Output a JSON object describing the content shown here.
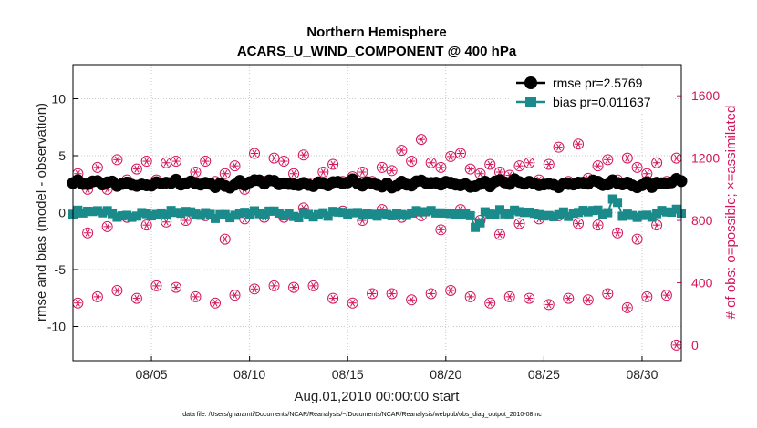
{
  "chart_data": {
    "type": "scatter",
    "title": "Northern Hemisphere",
    "subtitle": "ACARS_U_WIND_COMPONENT @ 400 hPa",
    "xlabel": "Aug.01,2010 00:00:00 start",
    "ylabel": "rmse and bias (model - observation)",
    "y2label": "# of obs: o=possible; ×=assimilated",
    "footnote": "data file: /Users/gharamti/Documents/NCAR/Reanalysis/~/Documents/NCAR/Reanalysis/webpub/obs_diag_output_2010-08.nc",
    "xlim": [
      1.0,
      32.0
    ],
    "ylim": [
      -13,
      13
    ],
    "y2lim": [
      -100,
      1800
    ],
    "xticks": [
      5,
      10,
      15,
      20,
      25,
      30
    ],
    "xtick_labels": [
      "08/05",
      "08/10",
      "08/15",
      "08/20",
      "08/25",
      "08/30"
    ],
    "yticks": [
      10,
      5,
      0,
      -5,
      -10
    ],
    "ytick_labels": [
      "10",
      "5",
      "0",
      "-5",
      "-10"
    ],
    "y2ticks": [
      1600,
      1200,
      800,
      400,
      0
    ],
    "y2tick_labels": [
      "1600",
      "1200",
      "800",
      "400",
      "0"
    ],
    "legend": {
      "position": "top-right",
      "entries": [
        {
          "label": "rmse pr=2.5769",
          "color": "#000000",
          "marker": "circle"
        },
        {
          "label": "bias pr=0.011637",
          "color": "#1a8a8a",
          "marker": "square"
        }
      ]
    },
    "colors": {
      "rmse": "#000000",
      "bias": "#1a8a8a",
      "obs": "#d4145a"
    },
    "series": [
      {
        "name": "rmse",
        "axis": "left",
        "style": "line-marker",
        "base": 2.55,
        "amplitude": 0.35
      },
      {
        "name": "bias",
        "axis": "left",
        "style": "line-marker",
        "base": -0.1,
        "amplitude": 0.35
      },
      {
        "name": "possible / assimilated (high)",
        "axis": "right",
        "style": "marker",
        "x": [
          1.25,
          1.75,
          2.25,
          2.75,
          3.25,
          3.75,
          4.25,
          4.75,
          5.25,
          5.75,
          6.25,
          6.75,
          7.25,
          7.75,
          8.25,
          8.75,
          9.25,
          9.75,
          10.25,
          10.75,
          11.25,
          11.75,
          12.25,
          12.75,
          13.25,
          13.75,
          14.25,
          14.75,
          15.25,
          15.75,
          16.25,
          16.75,
          17.25,
          17.75,
          18.25,
          18.75,
          19.25,
          19.75,
          20.25,
          20.75,
          21.25,
          21.75,
          22.25,
          22.75,
          23.25,
          23.75,
          24.25,
          24.75,
          25.25,
          25.75,
          26.25,
          26.75,
          27.25,
          27.75,
          28.25,
          28.75,
          29.25,
          29.75,
          30.25,
          30.75,
          31.25,
          31.75
        ],
        "y": [
          1100,
          1000,
          1140,
          1000,
          1190,
          1060,
          1130,
          1180,
          1060,
          1170,
          1180,
          1040,
          1110,
          1180,
          1050,
          1100,
          1150,
          1000,
          1230,
          1050,
          1200,
          1180,
          1100,
          1220,
          1040,
          1110,
          1160,
          1050,
          1080,
          1110,
          1050,
          1140,
          1120,
          1250,
          1180,
          1320,
          1170,
          1140,
          1210,
          1230,
          1130,
          1100,
          1160,
          1110,
          1090,
          1150,
          1170,
          1060,
          1160,
          1270,
          1050,
          1290,
          1070,
          1150,
          1190,
          1060,
          1200,
          1140,
          1100,
          1170,
          1050,
          1200
        ]
      },
      {
        "name": "possible / assimilated (low)",
        "axis": "right",
        "style": "marker",
        "x": [
          1.25,
          1.75,
          2.25,
          2.75,
          3.25,
          3.75,
          4.25,
          4.75,
          5.25,
          5.75,
          6.25,
          6.75,
          7.25,
          7.75,
          8.25,
          8.75,
          9.25,
          9.75,
          10.25,
          10.75,
          11.25,
          11.75,
          12.25,
          12.75,
          13.25,
          13.75,
          14.25,
          14.75,
          15.25,
          15.75,
          16.25,
          16.75,
          17.25,
          17.75,
          18.25,
          18.75,
          19.25,
          19.75,
          20.25,
          20.75,
          21.25,
          21.75,
          22.25,
          22.75,
          23.25,
          23.75,
          24.25,
          24.75,
          25.25,
          25.75,
          26.25,
          26.75,
          27.25,
          27.75,
          28.25,
          28.75,
          29.25,
          29.75,
          30.25,
          30.75,
          31.25,
          31.75
        ],
        "y": [
          270,
          720,
          310,
          760,
          350,
          820,
          300,
          770,
          380,
          790,
          370,
          800,
          310,
          830,
          270,
          680,
          320,
          810,
          360,
          820,
          380,
          820,
          370,
          880,
          380,
          840,
          300,
          860,
          270,
          800,
          330,
          870,
          330,
          820,
          290,
          830,
          330,
          740,
          350,
          870,
          310,
          800,
          270,
          710,
          310,
          780,
          300,
          810,
          260,
          830,
          300,
          780,
          290,
          770,
          330,
          720,
          240,
          680,
          310,
          770,
          320,
          0
        ]
      }
    ]
  }
}
